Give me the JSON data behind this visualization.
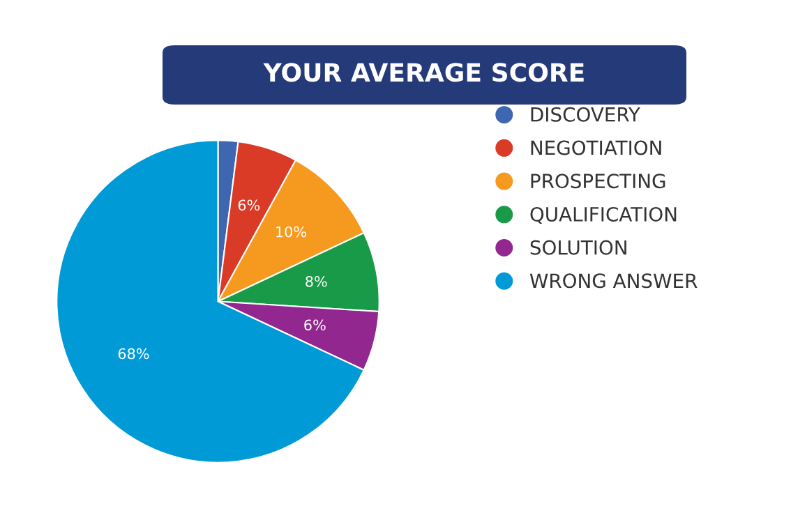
{
  "chart_data": {
    "type": "pie",
    "title": "YOUR AVERAGE SCORE",
    "categories": [
      "DISCOVERY",
      "NEGOTIATION",
      "PROSPECTING",
      "QUALIFICATION",
      "SOLUTION",
      "WRONG ANSWER"
    ],
    "values": [
      2,
      6,
      10,
      8,
      6,
      68
    ],
    "colors": [
      "#3f66b0",
      "#d93b27",
      "#f59a1e",
      "#189a48",
      "#92278f",
      "#009ad6"
    ],
    "value_labels": [
      null,
      "6%",
      "10%",
      "8%",
      "6%",
      "68%"
    ],
    "legend": "right",
    "marker": "circle"
  }
}
